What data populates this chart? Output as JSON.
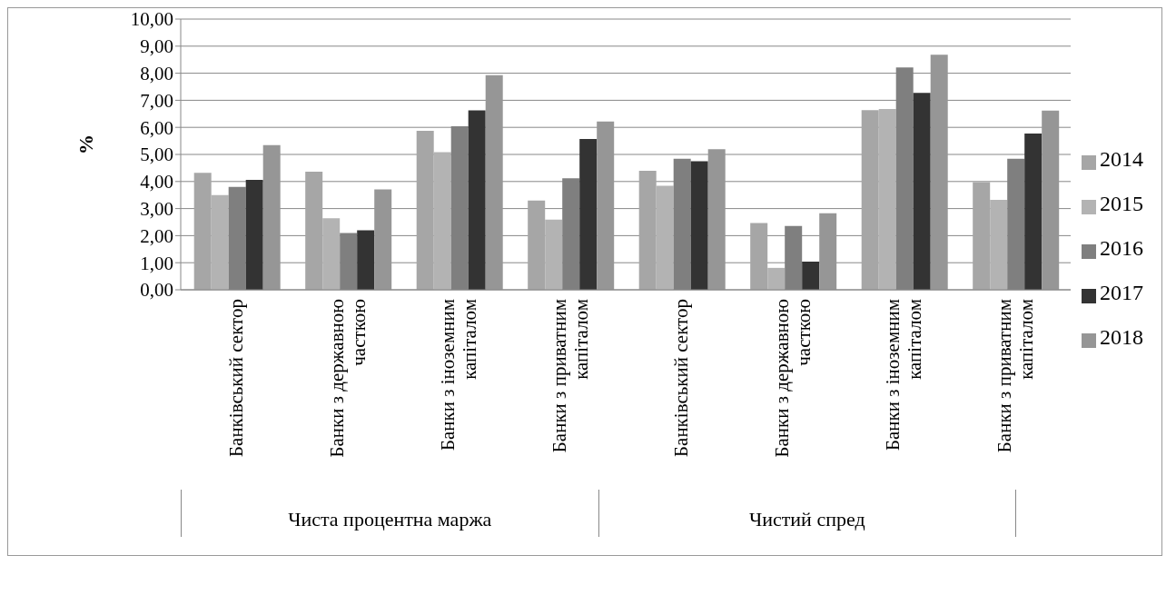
{
  "chart_data": {
    "type": "bar",
    "ylabel": "%",
    "categories": [
      "Банківський сектор",
      "Банки з державною часткою",
      "Банки з іноземним капіталом",
      "Банки з приватним капіталом",
      "Банківський сектор",
      "Банки з державною часткою",
      "Банки з іноземним капіталом",
      "Банки з приватним капіталом"
    ],
    "series": [
      {
        "name": "2014",
        "color": "#a6a6a6",
        "values": [
          4.32,
          4.36,
          5.87,
          3.3,
          4.4,
          2.47,
          6.64,
          3.98
        ]
      },
      {
        "name": "2015",
        "color": "#b3b3b3",
        "values": [
          3.5,
          2.64,
          5.08,
          2.59,
          3.84,
          0.81,
          6.68,
          3.32
        ]
      },
      {
        "name": "2016",
        "color": "#7f7f7f",
        "values": [
          3.8,
          2.1,
          6.04,
          4.12,
          4.84,
          2.36,
          8.21,
          4.84
        ]
      },
      {
        "name": "2017",
        "color": "#333333",
        "values": [
          4.06,
          2.2,
          6.63,
          5.57,
          4.75,
          1.04,
          7.27,
          5.77
        ]
      },
      {
        "name": "2018",
        "color": "#969696",
        "values": [
          5.34,
          3.71,
          7.93,
          6.22,
          5.19,
          2.83,
          8.68,
          6.62
        ]
      }
    ],
    "ylim": [
      0,
      10
    ],
    "yticks": [
      {
        "value": 0,
        "label": "0,00"
      },
      {
        "value": 1,
        "label": "1,00"
      },
      {
        "value": 2,
        "label": "2,00"
      },
      {
        "value": 3,
        "label": "3,00"
      },
      {
        "value": 4,
        "label": "4,00"
      },
      {
        "value": 5,
        "label": "5,00"
      },
      {
        "value": 6,
        "label": "6,00"
      },
      {
        "value": 7,
        "label": "7,00"
      },
      {
        "value": 8,
        "label": "8,00"
      },
      {
        "value": 9,
        "label": "9,00"
      },
      {
        "value": 10,
        "label": "10,00"
      }
    ],
    "grid": "y",
    "legend": "right",
    "annotations": [
      "Чиста процентна маржа",
      "Чистий спред"
    ]
  }
}
